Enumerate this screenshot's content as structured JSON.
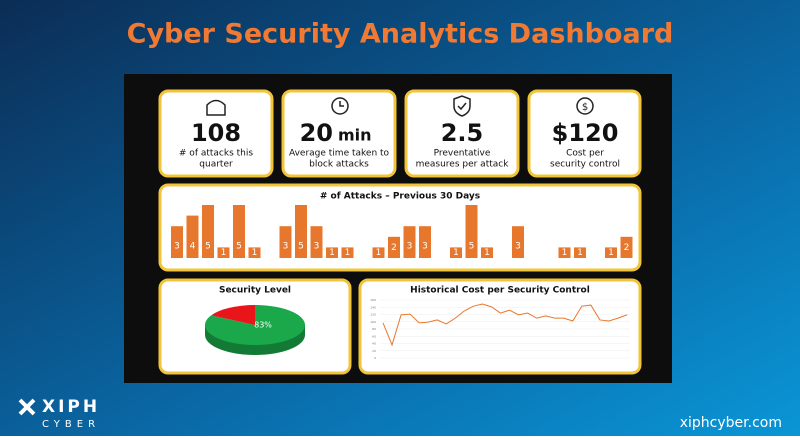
{
  "header": {
    "title": "Cyber Security Analytics Dashboard"
  },
  "kpis": [
    {
      "value": "108",
      "label": [
        "# of attacks this",
        "quarter"
      ]
    },
    {
      "value": "20",
      "unit": "min",
      "label": [
        "Average time taken to",
        "block attacks"
      ]
    },
    {
      "value": "2.5",
      "label": [
        "Preventative",
        "measures per attack"
      ]
    },
    {
      "value": "$120",
      "label": [
        "Cost per",
        "security control"
      ]
    }
  ],
  "chart_data": [
    {
      "type": "bar",
      "title": "# of Attacks – Previous 30 Days",
      "color": "#e8772e",
      "values": [
        3,
        4,
        5,
        1,
        5,
        1,
        null,
        3,
        5,
        3,
        1,
        1,
        null,
        1,
        2,
        3,
        3,
        null,
        1,
        5,
        1,
        null,
        3,
        null,
        null,
        1,
        1,
        null,
        1,
        2
      ]
    },
    {
      "type": "pie",
      "title": "Security Level",
      "values": [
        83,
        17
      ],
      "value_labels": [
        "83%",
        null
      ],
      "colors": [
        "#1aa84a",
        "#e8161b"
      ]
    },
    {
      "type": "line",
      "title": "Historical Cost per Security Control",
      "color": "#e8772e",
      "ylim": [
        0,
        160
      ],
      "yticks": [
        0,
        20,
        40,
        60,
        80,
        100,
        120,
        140,
        160
      ],
      "grid": true,
      "values": [
        97,
        36,
        119,
        121,
        97,
        99,
        105,
        94,
        110,
        130,
        143,
        149,
        141,
        124,
        132,
        119,
        124,
        110,
        116,
        110,
        110,
        102,
        143,
        146,
        105,
        102,
        110,
        119
      ]
    }
  ],
  "footer": {
    "logo_top": "XIPH",
    "logo_bottom": "CYBER",
    "url": "xiphcyber.com"
  }
}
